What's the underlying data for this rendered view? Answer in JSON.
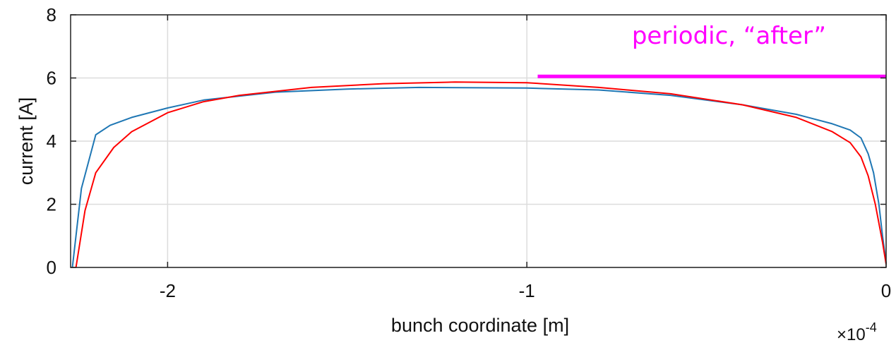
{
  "chart_data": {
    "type": "line",
    "xlabel": "bunch coordinate [m]",
    "ylabel": "current [A]",
    "x_multiplier": "×10",
    "x_multiplier_exp": "-4",
    "xlim": [
      -2.27,
      0
    ],
    "ylim": [
      0,
      8
    ],
    "xticks": [
      -2,
      -1,
      0
    ],
    "xtick_labels": [
      "-2",
      "-1",
      "0"
    ],
    "yticks": [
      0,
      2,
      4,
      6,
      8
    ],
    "ytick_labels": [
      "0",
      "2",
      "4",
      "6",
      "8"
    ],
    "grid": true,
    "annotation": {
      "text": "periodic, “after”",
      "color": "#ff00ff"
    },
    "series": [
      {
        "color": "#1f77b4",
        "x": [
          -2.265,
          -2.24,
          -2.2,
          -2.16,
          -2.1,
          -2.0,
          -1.9,
          -1.7,
          -1.5,
          -1.3,
          -1.0,
          -0.8,
          -0.6,
          -0.4,
          -0.25,
          -0.15,
          -0.1,
          -0.07,
          -0.05,
          -0.035,
          -0.02,
          -0.01,
          0.0
        ],
        "y": [
          0.0,
          2.5,
          4.2,
          4.5,
          4.75,
          5.05,
          5.3,
          5.55,
          5.65,
          5.7,
          5.68,
          5.62,
          5.45,
          5.15,
          4.85,
          4.55,
          4.35,
          4.1,
          3.6,
          3.0,
          2.0,
          1.0,
          0.15
        ]
      },
      {
        "color": "#ff0000",
        "x": [
          -2.255,
          -2.23,
          -2.2,
          -2.15,
          -2.1,
          -2.0,
          -1.9,
          -1.8,
          -1.6,
          -1.4,
          -1.2,
          -1.0,
          -0.8,
          -0.6,
          -0.4,
          -0.25,
          -0.15,
          -0.1,
          -0.07,
          -0.05,
          -0.03,
          -0.01,
          0.0
        ],
        "y": [
          0.0,
          1.8,
          3.0,
          3.8,
          4.3,
          4.9,
          5.25,
          5.45,
          5.7,
          5.82,
          5.87,
          5.85,
          5.7,
          5.5,
          5.15,
          4.75,
          4.3,
          3.95,
          3.5,
          2.9,
          2.0,
          0.8,
          0.1
        ]
      },
      {
        "color": "#ff00ff",
        "x": [
          -0.97,
          0.0
        ],
        "y": [
          6.05,
          6.05
        ]
      }
    ]
  }
}
